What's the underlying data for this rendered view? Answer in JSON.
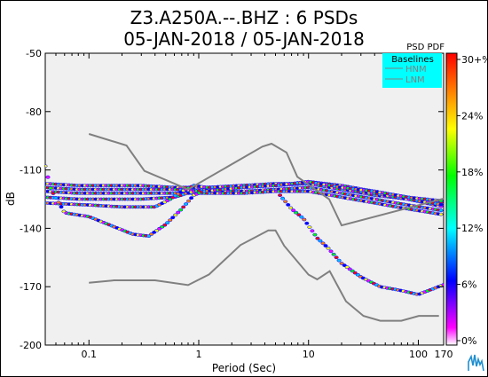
{
  "title_line1": "Z3.A250A.--.BHZ : 6 PSDs",
  "title_line2": "05-JAN-2018 / 05-JAN-2018",
  "chart_data": {
    "type": "heatmap",
    "title": "Z3.A250A.--.BHZ : 6 PSDs",
    "subtitle": "05-JAN-2018 / 05-JAN-2018",
    "xlabel": "Period (Sec)",
    "ylabel": "dB",
    "xscale": "log",
    "xlim": [
      0.04,
      170
    ],
    "ylim": [
      -200,
      -50
    ],
    "xticks": [
      0.1,
      1,
      10,
      100,
      170
    ],
    "xtick_labels": [
      "0.1",
      "1",
      "10",
      "100",
      "170"
    ],
    "yticks": [
      -50,
      -80,
      -110,
      -140,
      -170,
      -200
    ],
    "ytick_labels": [
      "-50",
      "-80",
      "-110",
      "-140",
      "-170",
      "-200"
    ],
    "colorbar": {
      "label": "PSD PDF",
      "ticks": [
        "30+%",
        "24%",
        "18%",
        "12%",
        "6%",
        "0%"
      ],
      "colors": [
        "#ff0000",
        "#ff8000",
        "#ffff00",
        "#00ff00",
        "#00ffff",
        "#0000ff",
        "#ff00ff",
        "#ffffff"
      ]
    },
    "legend": {
      "title": "Baselines",
      "placement": "top-right",
      "entries": [
        "HNM",
        "LNM"
      ],
      "background": "#00ffff",
      "line_color": "#808080"
    },
    "baselines": {
      "HNM": [
        [
          0.1,
          -91.5
        ],
        [
          0.22,
          -97.4
        ],
        [
          0.32,
          -110.5
        ],
        [
          0.8,
          -120
        ],
        [
          3.8,
          -98
        ],
        [
          4.6,
          -96.5
        ],
        [
          6.3,
          -101
        ],
        [
          7.9,
          -113.5
        ],
        [
          15.4,
          -125
        ],
        [
          20,
          -138.5
        ],
        [
          354.8,
          -120
        ]
      ],
      "LNM": [
        [
          0.1,
          -168
        ],
        [
          0.17,
          -166.7
        ],
        [
          0.4,
          -166.7
        ],
        [
          0.8,
          -169.2
        ],
        [
          1.24,
          -163.7
        ],
        [
          2.4,
          -148.6
        ],
        [
          4.3,
          -141.1
        ],
        [
          5,
          -141.1
        ],
        [
          6,
          -149
        ],
        [
          10,
          -163.8
        ],
        [
          12,
          -166.2
        ],
        [
          15.6,
          -162
        ],
        [
          21.9,
          -177.5
        ],
        [
          31.6,
          -185
        ],
        [
          45,
          -187.5
        ],
        [
          70,
          -187.5
        ],
        [
          101,
          -185
        ],
        [
          154,
          -185
        ]
      ]
    },
    "psd_curves": [
      {
        "x": [
          0.04,
          0.08,
          0.15,
          0.3,
          0.6,
          1.2,
          2.5,
          5,
          10,
          20,
          40,
          80,
          170
        ],
        "y": [
          -117,
          -118,
          -118,
          -118,
          -119,
          -119,
          -118,
          -118,
          -117,
          -120,
          -123,
          -125,
          -129
        ]
      },
      {
        "x": [
          0.04,
          0.08,
          0.15,
          0.3,
          0.6,
          1.2,
          2.5,
          5,
          10,
          20,
          40,
          80,
          170
        ],
        "y": [
          -119,
          -120,
          -120,
          -120,
          -120,
          -121,
          -121,
          -120,
          -119,
          -122,
          -125,
          -128,
          -131
        ]
      },
      {
        "x": [
          0.04,
          0.08,
          0.15,
          0.3,
          0.6,
          1.2,
          2.5,
          5,
          10,
          20,
          40,
          80,
          170
        ],
        "y": [
          -121,
          -122,
          -122,
          -122,
          -122,
          -122,
          -122,
          -121,
          -121,
          -124,
          -127,
          -130,
          -133
        ]
      },
      {
        "x": [
          0.04,
          0.08,
          0.15,
          0.3,
          0.6,
          0.9,
          1.2,
          2.5,
          5,
          10,
          20,
          40,
          80,
          170
        ],
        "y": [
          -124,
          -125,
          -125,
          -125,
          -124,
          -121,
          -120,
          -119,
          -118,
          -116,
          -118,
          -121,
          -124,
          -127
        ]
      },
      {
        "x": [
          0.04,
          0.1,
          0.2,
          0.4,
          0.55,
          0.7,
          0.9,
          1.2,
          2.5,
          5,
          10,
          20,
          40,
          80,
          170
        ],
        "y": [
          -127,
          -128,
          -129,
          -129,
          -125,
          -121,
          -118,
          -119,
          -118,
          -117,
          -117,
          -120,
          -122,
          -125,
          -128
        ]
      },
      {
        "x": [
          0.04,
          0.045,
          0.06,
          0.1,
          0.15,
          0.25,
          0.35,
          0.5,
          0.7,
          0.9,
          1.1,
          2.5,
          5,
          10,
          20,
          40,
          80,
          170
        ],
        "y": [
          -108,
          -120,
          -132,
          -134,
          -138,
          -143,
          -144,
          -138,
          -130,
          -123,
          -121,
          -119,
          -118,
          -116,
          -119,
          -121,
          -124,
          -126
        ]
      },
      {
        "x": [
          5.5,
          7,
          9,
          12,
          15,
          20,
          30,
          45,
          70,
          100,
          170
        ],
        "y": [
          -123,
          -130,
          -135,
          -145,
          -150,
          -158,
          -165,
          -170,
          -172,
          -174,
          -169
        ]
      }
    ]
  }
}
